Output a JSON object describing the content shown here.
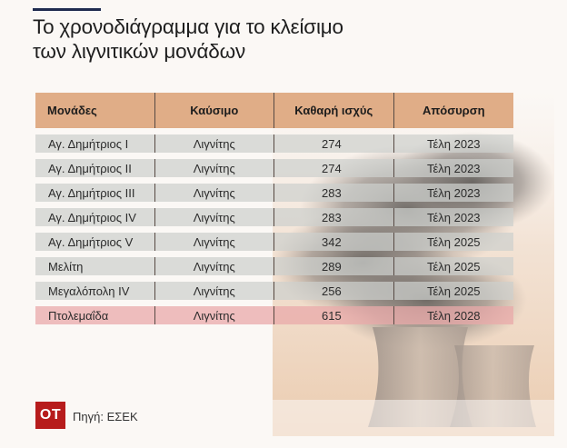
{
  "title": {
    "line1": "Το χρονοδιάγραμμα για το κλείσιμο",
    "line2": "των λιγνιτικών μονάδων"
  },
  "table": {
    "headers": [
      "Μονάδες",
      "Καύσιμο",
      "Καθαρή ισχύς",
      "Απόσυρση"
    ],
    "rows": [
      {
        "unit": "Αγ. Δημήτριος I",
        "fuel": "Λιγνίτης",
        "power": "274",
        "retirement": "Τέλη 2023"
      },
      {
        "unit": "Αγ. Δημήτριος II",
        "fuel": "Λιγνίτης",
        "power": "274",
        "retirement": "Τέλη 2023"
      },
      {
        "unit": "Αγ. Δημήτριος III",
        "fuel": "Λιγνίτης",
        "power": "283",
        "retirement": "Τέλη 2023"
      },
      {
        "unit": "Αγ. Δημήτριος IV",
        "fuel": "Λιγνίτης",
        "power": "283",
        "retirement": "Τέλη 2023"
      },
      {
        "unit": "Αγ. Δημήτριος V",
        "fuel": "Λιγνίτης",
        "power": "342",
        "retirement": "Τέλη 2025"
      },
      {
        "unit": "Μελίτη",
        "fuel": "Λιγνίτης",
        "power": "289",
        "retirement": "Τέλη 2025"
      },
      {
        "unit": "Μεγαλόπολη IV",
        "fuel": "Λιγνίτης",
        "power": "256",
        "retirement": "Τέλη 2025"
      },
      {
        "unit": "Πτολεμαΐδα",
        "fuel": "Λιγνίτης",
        "power": "615",
        "retirement": "Τέλη 2028"
      }
    ]
  },
  "colors": {
    "header": "#e0ad87",
    "row": "#cdd0cd",
    "highlight": "#e9aaaa",
    "logo": "#b71c1c",
    "rule": "#1f2b4f"
  },
  "footer": {
    "logo_text": "ΟΤ",
    "source": "Πηγή: ΕΣΕΚ"
  }
}
